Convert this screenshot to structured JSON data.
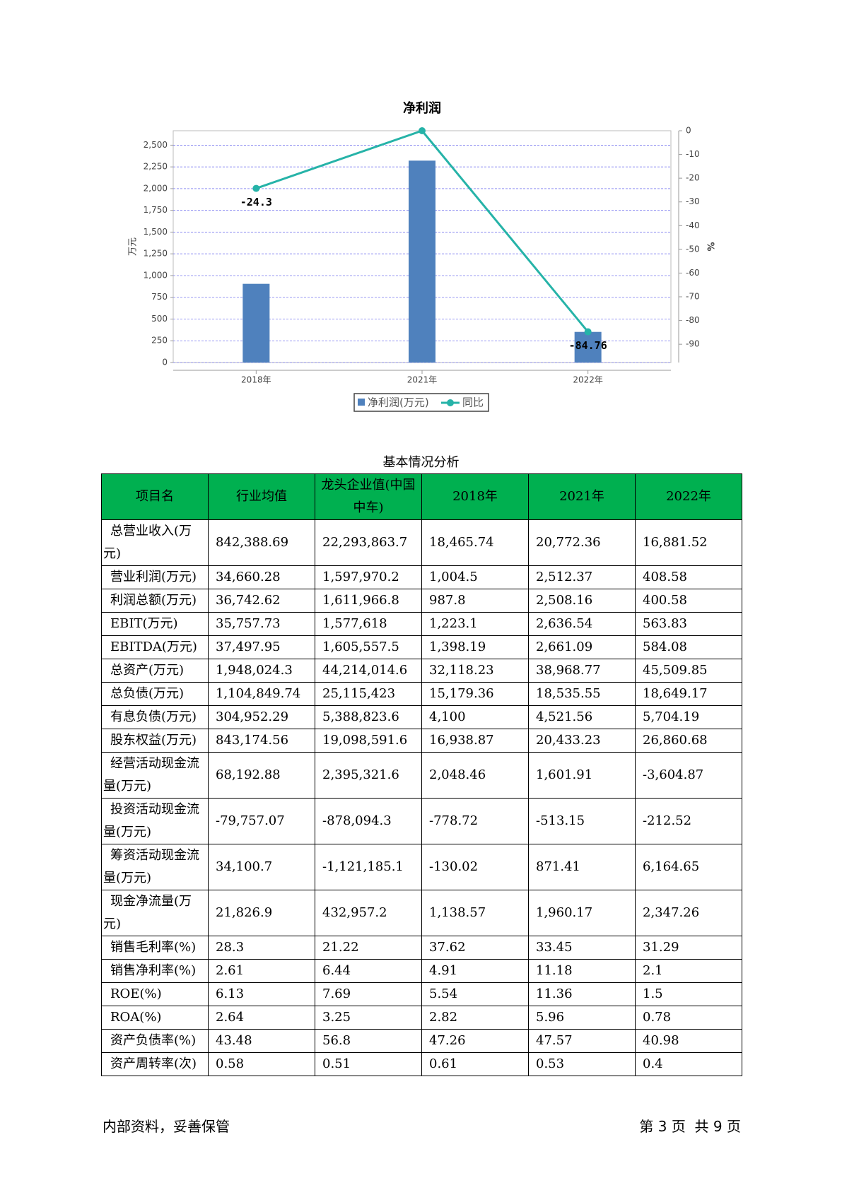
{
  "chart_data": {
    "type": "combo",
    "title": "净利润",
    "y_label": "万元",
    "y2_label": "%",
    "categories": [
      "2018年",
      "2021年",
      "2022年"
    ],
    "series": [
      {
        "name": "净利润(万元)",
        "type": "bar",
        "color": "#4f81bd",
        "values": [
          905,
          2322,
          352
        ]
      },
      {
        "name": "同比",
        "type": "line",
        "axis": "y2",
        "color": "#26b3a8",
        "values": [
          -24.3,
          0,
          -84.76
        ],
        "data_labels": [
          true,
          false,
          true
        ]
      }
    ],
    "ylim": [
      0,
      2666
    ],
    "yticks": [
      0,
      250,
      500,
      750,
      {
        "value": 1000,
        "label": "1,000"
      },
      {
        "value": 1250,
        "label": "1,250"
      },
      {
        "value": 1500,
        "label": "1,500"
      },
      {
        "value": 1750,
        "label": "1,750"
      },
      {
        "value": 2000,
        "label": "2,000"
      },
      {
        "value": 2250,
        "label": "2,250"
      },
      {
        "value": 2500,
        "label": "2,500"
      }
    ],
    "y2lim": [
      -97.7,
      0
    ],
    "y2ticks": [
      0,
      -10,
      -20,
      -30,
      -40,
      -50,
      -60,
      -70,
      -80,
      -90
    ],
    "grid": true
  },
  "table": {
    "title": "基本情况分析",
    "header": [
      "项目名",
      "行业均值",
      "龙头企业值(中国中车)",
      "2018年",
      "2021年",
      "2022年"
    ],
    "rows": [
      [
        "总营业收入(万元)",
        "842,388.69",
        "22,293,863.7",
        "18,465.74",
        "20,772.36",
        "16,881.52"
      ],
      [
        "营业利润(万元)",
        "34,660.28",
        "1,597,970.2",
        "1,004.5",
        "2,512.37",
        "408.58"
      ],
      [
        "利润总额(万元)",
        "36,742.62",
        "1,611,966.8",
        "987.8",
        "2,508.16",
        "400.58"
      ],
      [
        "EBIT(万元)",
        "35,757.73",
        "1,577,618",
        "1,223.1",
        "2,636.54",
        "563.83"
      ],
      [
        "EBITDA(万元)",
        "37,497.95",
        "1,605,557.5",
        "1,398.19",
        "2,661.09",
        "584.08"
      ],
      [
        "总资产(万元)",
        "1,948,024.3",
        "44,214,014.6",
        "32,118.23",
        "38,968.77",
        "45,509.85"
      ],
      [
        "总负债(万元)",
        "1,104,849.74",
        "25,115,423",
        "15,179.36",
        "18,535.55",
        "18,649.17"
      ],
      [
        "有息负债(万元)",
        "304,952.29",
        "5,388,823.6",
        "4,100",
        "4,521.56",
        "5,704.19"
      ],
      [
        "股东权益(万元)",
        "843,174.56",
        "19,098,591.6",
        "16,938.87",
        "20,433.23",
        "26,860.68"
      ],
      [
        "经营活动现金流量(万元)",
        "68,192.88",
        "2,395,321.6",
        "2,048.46",
        "1,601.91",
        "-3,604.87"
      ],
      [
        "投资活动现金流量(万元)",
        "-79,757.07",
        "-878,094.3",
        "-778.72",
        "-513.15",
        "-212.52"
      ],
      [
        "筹资活动现金流量(万元)",
        "34,100.7",
        "-1,121,185.1",
        "-130.02",
        "871.41",
        "6,164.65"
      ],
      [
        "现金净流量(万元)",
        "21,826.9",
        "432,957.2",
        "1,138.57",
        "1,960.17",
        "2,347.26"
      ],
      [
        "销售毛利率(%)",
        "28.3",
        "21.22",
        "37.62",
        "33.45",
        "31.29"
      ],
      [
        "销售净利率(%)",
        "2.61",
        "6.44",
        "4.91",
        "11.18",
        "2.1"
      ],
      [
        "ROE(%)",
        "6.13",
        "7.69",
        "5.54",
        "11.36",
        "1.5"
      ],
      [
        "ROA(%)",
        "2.64",
        "3.25",
        "2.82",
        "5.96",
        "0.78"
      ],
      [
        "资产负债率(%)",
        "43.48",
        "56.8",
        "47.26",
        "47.57",
        "40.98"
      ],
      [
        "资产周转率(次)",
        "0.58",
        "0.51",
        "0.61",
        "0.53",
        "0.4"
      ]
    ]
  },
  "footer": {
    "left": "内部资料，妥善保管",
    "right": "第 3 页  共 9 页"
  }
}
